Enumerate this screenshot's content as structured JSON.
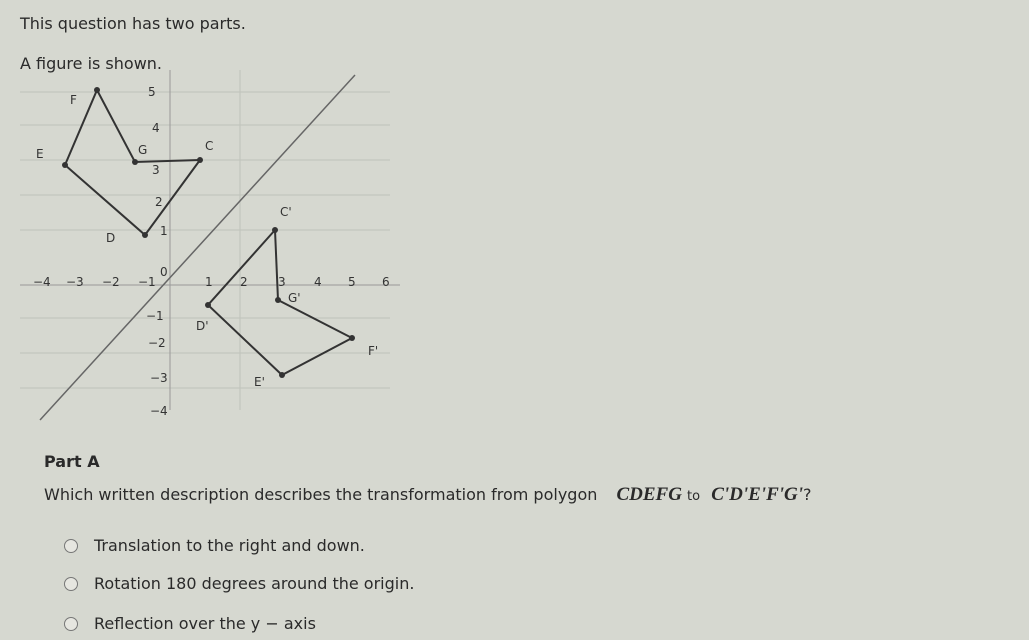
{
  "intro": [
    "This question has two parts.",
    "A figure is shown."
  ],
  "figure": {
    "x_tick_labels": [
      "−4",
      "−3",
      "−2",
      "−1",
      "0",
      "1",
      "2",
      "3",
      "4",
      "5",
      "6"
    ],
    "y_tick_labels": [
      "5",
      "4",
      "3",
      "2",
      "1",
      "−1",
      "−2",
      "−3",
      "−4"
    ],
    "point_labels": [
      "F",
      "E",
      "G",
      "C",
      "D",
      "C'",
      "G'",
      "D'",
      "F'",
      "E'"
    ]
  },
  "part_a": {
    "title": "Part A",
    "question_prefix": "Which written description describes the transformation from polygon",
    "polygon_from": "CDEFG",
    "word_to": "to",
    "polygon_to": "C'D'E'F'G'",
    "question_end": "?",
    "options": [
      "Translation to the right and down.",
      "Rotation 180 degrees around the origin.",
      "Reflection over the y − axis"
    ]
  }
}
